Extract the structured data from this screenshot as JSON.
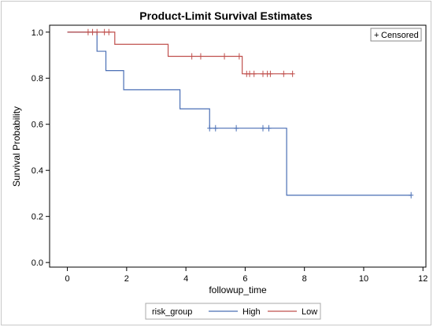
{
  "chart_data": {
    "type": "line",
    "subtype": "kaplan-meier-step",
    "title": "Product-Limit Survival Estimates",
    "xlabel": "followup_time",
    "ylabel": "Survival Probability",
    "xlim": [
      -0.6,
      12.1
    ],
    "ylim": [
      -0.02,
      1.03
    ],
    "xticks": [
      0,
      2,
      4,
      6,
      8,
      10,
      12
    ],
    "yticks": [
      0.0,
      0.2,
      0.4,
      0.6,
      0.8,
      1.0
    ],
    "ytick_labels": [
      "0.0",
      "0.2",
      "0.4",
      "0.6",
      "0.8",
      "1.0"
    ],
    "inset_legend": {
      "symbol": "+",
      "label": "Censored",
      "placement": "top-right"
    },
    "legend": {
      "title": "risk_group",
      "placement": "bottom"
    },
    "series": [
      {
        "name": "High",
        "color": "#4a6fb5",
        "steps": [
          [
            0,
            1.0
          ],
          [
            1.0,
            0.917
          ],
          [
            1.3,
            0.833
          ],
          [
            1.9,
            0.75
          ],
          [
            3.8,
            0.667
          ],
          [
            4.8,
            0.583
          ],
          [
            7.4,
            0.292
          ],
          [
            11.6,
            0.292
          ]
        ],
        "censored": [
          [
            4.8,
            0.583
          ],
          [
            5.0,
            0.583
          ],
          [
            5.7,
            0.583
          ],
          [
            6.6,
            0.583
          ],
          [
            6.8,
            0.583
          ],
          [
            11.6,
            0.292
          ]
        ]
      },
      {
        "name": "Low",
        "color": "#c0504d",
        "steps": [
          [
            0,
            1.0
          ],
          [
            1.6,
            0.947
          ],
          [
            3.4,
            0.895
          ],
          [
            5.9,
            0.819
          ],
          [
            7.6,
            0.819
          ]
        ],
        "censored": [
          [
            0.7,
            1.0
          ],
          [
            0.85,
            1.0
          ],
          [
            1.0,
            1.0
          ],
          [
            1.25,
            1.0
          ],
          [
            1.4,
            1.0
          ],
          [
            4.2,
            0.895
          ],
          [
            4.5,
            0.895
          ],
          [
            5.3,
            0.895
          ],
          [
            5.8,
            0.895
          ],
          [
            6.05,
            0.819
          ],
          [
            6.15,
            0.819
          ],
          [
            6.3,
            0.819
          ],
          [
            6.6,
            0.819
          ],
          [
            6.75,
            0.819
          ],
          [
            6.85,
            0.819
          ],
          [
            7.3,
            0.819
          ],
          [
            7.6,
            0.819
          ]
        ]
      }
    ]
  }
}
